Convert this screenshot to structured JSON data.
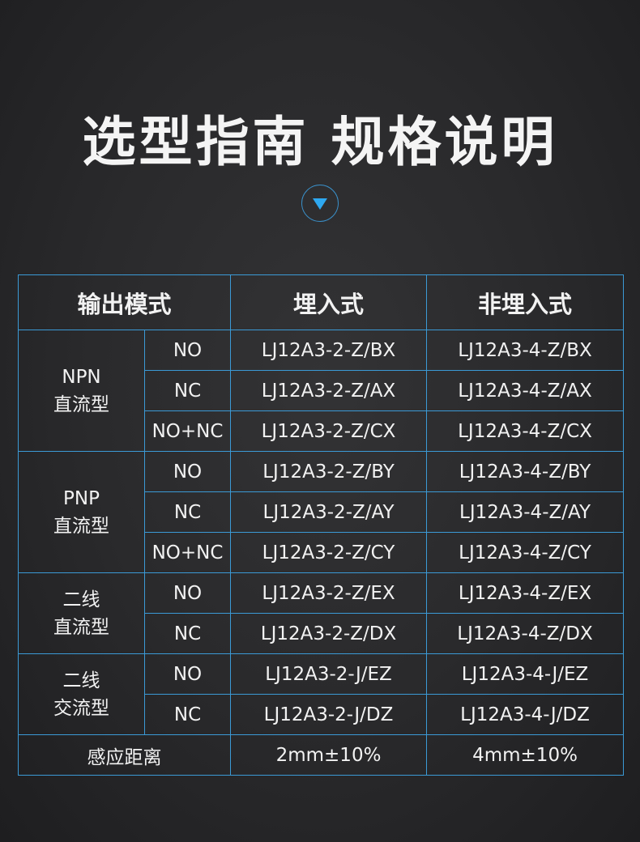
{
  "title": "选型指南 规格说明",
  "colors": {
    "border": "#3b9ad6",
    "arrow": "#2ea8f0"
  },
  "header": {
    "mode": "输出模式",
    "embedded": "埋入式",
    "non_embedded": "非埋入式"
  },
  "groups": [
    {
      "name_line1": "NPN",
      "name_line2": "直流型",
      "rows": [
        {
          "type": "NO",
          "embedded": "LJ12A3-2-Z/BX",
          "non_embedded": "LJ12A3-4-Z/BX"
        },
        {
          "type": "NC",
          "embedded": "LJ12A3-2-Z/AX",
          "non_embedded": "LJ12A3-4-Z/AX"
        },
        {
          "type": "NO+NC",
          "embedded": "LJ12A3-2-Z/CX",
          "non_embedded": "LJ12A3-4-Z/CX"
        }
      ]
    },
    {
      "name_line1": "PNP",
      "name_line2": "直流型",
      "rows": [
        {
          "type": "NO",
          "embedded": "LJ12A3-2-Z/BY",
          "non_embedded": "LJ12A3-4-Z/BY"
        },
        {
          "type": "NC",
          "embedded": "LJ12A3-2-Z/AY",
          "non_embedded": "LJ12A3-4-Z/AY"
        },
        {
          "type": "NO+NC",
          "embedded": "LJ12A3-2-Z/CY",
          "non_embedded": "LJ12A3-4-Z/CY"
        }
      ]
    },
    {
      "name_line1": "二线",
      "name_line2": "直流型",
      "rows": [
        {
          "type": "NO",
          "embedded": "LJ12A3-2-Z/EX",
          "non_embedded": "LJ12A3-4-Z/EX"
        },
        {
          "type": "NC",
          "embedded": "LJ12A3-2-Z/DX",
          "non_embedded": "LJ12A3-4-Z/DX"
        }
      ]
    },
    {
      "name_line1": "二线",
      "name_line2": "交流型",
      "rows": [
        {
          "type": "NO",
          "embedded": "LJ12A3-2-J/EZ",
          "non_embedded": "LJ12A3-4-J/EZ"
        },
        {
          "type": "NC",
          "embedded": "LJ12A3-2-J/DZ",
          "non_embedded": "LJ12A3-4-J/DZ"
        }
      ]
    }
  ],
  "footer": {
    "label": "感应距离",
    "embedded": "2mm±10%",
    "non_embedded": "4mm±10%"
  }
}
